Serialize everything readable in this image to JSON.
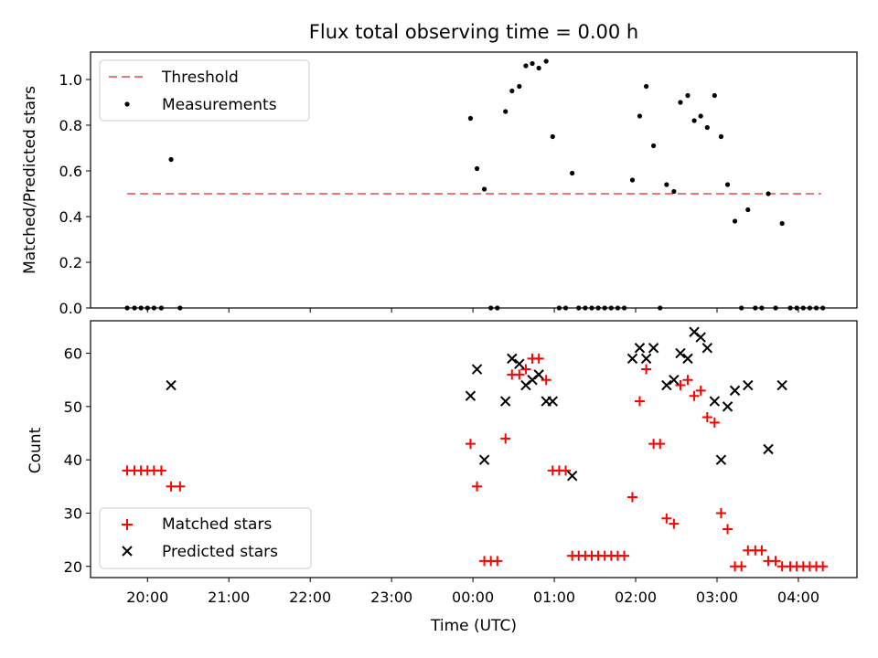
{
  "chart_data": {
    "title": "Flux total observing time = 0.00 h",
    "xlabel": "Time (UTC)",
    "x_unit": "hours (UTC, continuing past midnight)",
    "x_tick_values": [
      20,
      21,
      22,
      23,
      24,
      25,
      26,
      27,
      28
    ],
    "x_tick_labels": [
      "20:00",
      "21:00",
      "22:00",
      "23:00",
      "00:00",
      "01:00",
      "02:00",
      "03:00",
      "04:00"
    ],
    "xlim": [
      19.3,
      28.72
    ],
    "panels": [
      {
        "type": "scatter",
        "ylabel": "Matched/Predicted stars",
        "ylim": [
          0,
          1.12
        ],
        "y_tick_values": [
          0,
          0.2,
          0.4,
          0.6,
          0.8,
          1.0
        ],
        "y_tick_labels": [
          "0.0",
          "0.2",
          "0.4",
          "0.6",
          "0.8",
          "1.0"
        ],
        "legend_position": "upper-left",
        "threshold": {
          "name": "Threshold",
          "y": 0.5,
          "x_range": [
            19.75,
            28.28
          ],
          "color": "#ff7070"
        },
        "series": [
          {
            "name": "Measurements",
            "marker": "dot",
            "color": "#000000",
            "points": [
              [
                19.75,
                0
              ],
              [
                19.84,
                0
              ],
              [
                19.92,
                0
              ],
              [
                20.0,
                0
              ],
              [
                20.08,
                0
              ],
              [
                20.17,
                0
              ],
              [
                20.29,
                0.65
              ],
              [
                20.4,
                0
              ],
              [
                23.97,
                0.83
              ],
              [
                24.05,
                0.61
              ],
              [
                24.14,
                0.52
              ],
              [
                24.22,
                0
              ],
              [
                24.3,
                0
              ],
              [
                24.4,
                0.86
              ],
              [
                24.48,
                0.95
              ],
              [
                24.57,
                0.97
              ],
              [
                24.65,
                1.06
              ],
              [
                24.73,
                1.07
              ],
              [
                24.81,
                1.05
              ],
              [
                24.9,
                1.08
              ],
              [
                24.98,
                0.75
              ],
              [
                25.06,
                0
              ],
              [
                25.14,
                0
              ],
              [
                25.22,
                0.59
              ],
              [
                25.3,
                0
              ],
              [
                25.38,
                0
              ],
              [
                25.46,
                0
              ],
              [
                25.54,
                0
              ],
              [
                25.62,
                0
              ],
              [
                25.7,
                0
              ],
              [
                25.78,
                0
              ],
              [
                25.86,
                0
              ],
              [
                25.96,
                0.56
              ],
              [
                26.05,
                0.84
              ],
              [
                26.13,
                0.97
              ],
              [
                26.22,
                0.71
              ],
              [
                26.3,
                0
              ],
              [
                26.38,
                0.54
              ],
              [
                26.47,
                0.51
              ],
              [
                26.55,
                0.9
              ],
              [
                26.64,
                0.93
              ],
              [
                26.72,
                0.82
              ],
              [
                26.8,
                0.84
              ],
              [
                26.88,
                0.79
              ],
              [
                26.97,
                0.93
              ],
              [
                27.05,
                0.75
              ],
              [
                27.13,
                0.54
              ],
              [
                27.22,
                0.38
              ],
              [
                27.3,
                0
              ],
              [
                27.38,
                0.43
              ],
              [
                27.47,
                0
              ],
              [
                27.55,
                0
              ],
              [
                27.63,
                0.5
              ],
              [
                27.72,
                0
              ],
              [
                27.8,
                0.37
              ],
              [
                27.9,
                0
              ],
              [
                27.98,
                0
              ],
              [
                28.06,
                0
              ],
              [
                28.14,
                0
              ],
              [
                28.22,
                0
              ],
              [
                28.3,
                0
              ]
            ]
          }
        ]
      },
      {
        "type": "scatter",
        "ylabel": "Count",
        "ylim": [
          17.9,
          66.1
        ],
        "y_tick_values": [
          20,
          30,
          40,
          50,
          60
        ],
        "y_tick_labels": [
          "20",
          "30",
          "40",
          "50",
          "60"
        ],
        "legend_position": "lower-left",
        "series": [
          {
            "name": "Matched stars",
            "marker": "plus",
            "color": "#ff0000",
            "points": [
              [
                19.75,
                38
              ],
              [
                19.84,
                38
              ],
              [
                19.92,
                38
              ],
              [
                20.0,
                38
              ],
              [
                20.08,
                38
              ],
              [
                20.17,
                38
              ],
              [
                20.29,
                35
              ],
              [
                20.4,
                35
              ],
              [
                23.97,
                43
              ],
              [
                24.05,
                35
              ],
              [
                24.14,
                21
              ],
              [
                24.22,
                21
              ],
              [
                24.3,
                21
              ],
              [
                24.4,
                44
              ],
              [
                24.48,
                56
              ],
              [
                24.57,
                56
              ],
              [
                24.65,
                57
              ],
              [
                24.73,
                59
              ],
              [
                24.81,
                59
              ],
              [
                24.9,
                55
              ],
              [
                24.98,
                38
              ],
              [
                25.06,
                38
              ],
              [
                25.14,
                38
              ],
              [
                25.22,
                22
              ],
              [
                25.3,
                22
              ],
              [
                25.38,
                22
              ],
              [
                25.46,
                22
              ],
              [
                25.54,
                22
              ],
              [
                25.62,
                22
              ],
              [
                25.7,
                22
              ],
              [
                25.78,
                22
              ],
              [
                25.86,
                22
              ],
              [
                25.96,
                33
              ],
              [
                26.05,
                51
              ],
              [
                26.13,
                57
              ],
              [
                26.22,
                43
              ],
              [
                26.3,
                43
              ],
              [
                26.38,
                29
              ],
              [
                26.47,
                28
              ],
              [
                26.55,
                54
              ],
              [
                26.64,
                55
              ],
              [
                26.72,
                52
              ],
              [
                26.8,
                53
              ],
              [
                26.88,
                48
              ],
              [
                26.97,
                47
              ],
              [
                27.05,
                30
              ],
              [
                27.13,
                27
              ],
              [
                27.22,
                20
              ],
              [
                27.3,
                20
              ],
              [
                27.38,
                23
              ],
              [
                27.47,
                23
              ],
              [
                27.55,
                23
              ],
              [
                27.63,
                21
              ],
              [
                27.72,
                21
              ],
              [
                27.8,
                20
              ],
              [
                27.9,
                20
              ],
              [
                27.98,
                20
              ],
              [
                28.06,
                20
              ],
              [
                28.14,
                20
              ],
              [
                28.22,
                20
              ],
              [
                28.3,
                20
              ]
            ]
          },
          {
            "name": "Predicted stars",
            "marker": "cross",
            "color": "#000000",
            "points": [
              [
                20.29,
                54
              ],
              [
                23.97,
                52
              ],
              [
                24.05,
                57
              ],
              [
                24.14,
                40
              ],
              [
                24.4,
                51
              ],
              [
                24.48,
                59
              ],
              [
                24.57,
                58
              ],
              [
                24.65,
                54
              ],
              [
                24.73,
                55
              ],
              [
                24.81,
                56
              ],
              [
                24.9,
                51
              ],
              [
                24.98,
                51
              ],
              [
                25.22,
                37
              ],
              [
                25.96,
                59
              ],
              [
                26.05,
                61
              ],
              [
                26.13,
                59
              ],
              [
                26.22,
                61
              ],
              [
                26.38,
                54
              ],
              [
                26.47,
                55
              ],
              [
                26.55,
                60
              ],
              [
                26.64,
                59
              ],
              [
                26.72,
                64
              ],
              [
                26.8,
                63
              ],
              [
                26.88,
                61
              ],
              [
                26.97,
                51
              ],
              [
                27.05,
                40
              ],
              [
                27.13,
                50
              ],
              [
                27.22,
                53
              ],
              [
                27.38,
                54
              ],
              [
                27.63,
                42
              ],
              [
                27.8,
                54
              ]
            ]
          }
        ]
      }
    ]
  }
}
